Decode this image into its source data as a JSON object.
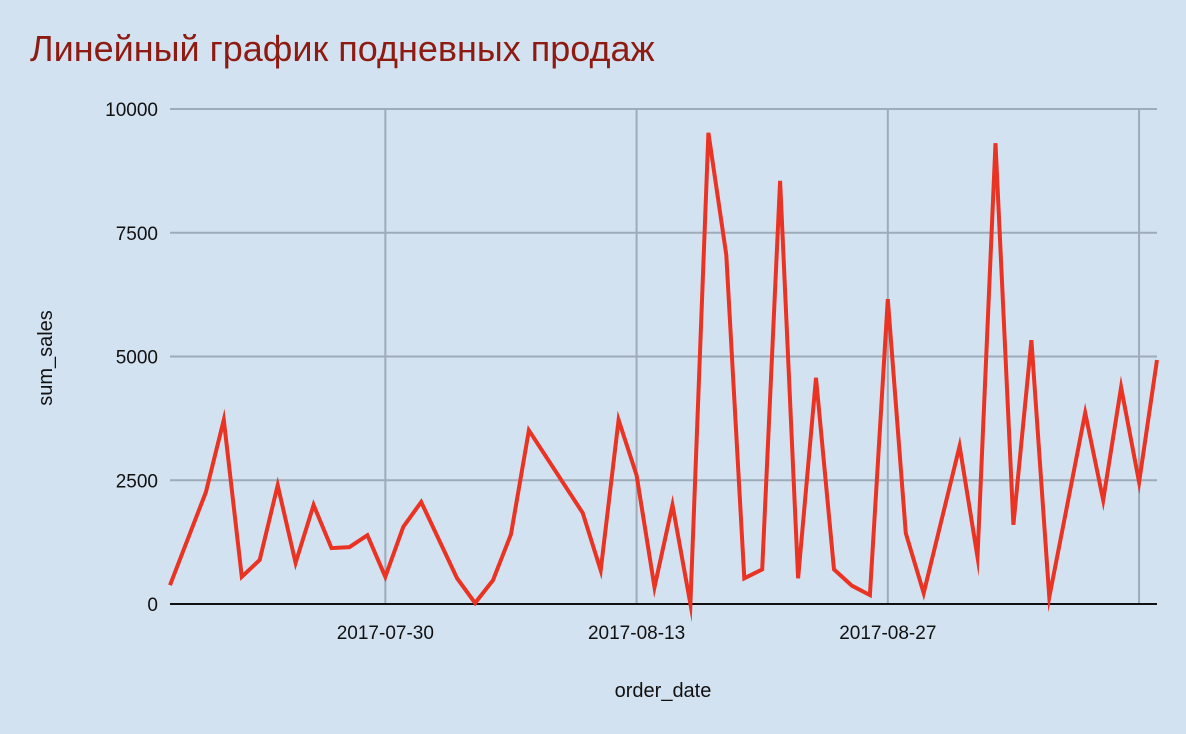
{
  "chart_data": {
    "type": "line",
    "title": "Линейный график подневных продаж",
    "xlabel": "order_date",
    "ylabel": "sum_sales",
    "ylim": [
      0,
      10000
    ],
    "xlim": [
      "2017-07-18",
      "2017-09-11"
    ],
    "yticks": [
      "0",
      "2500",
      "5000",
      "7500",
      "10000"
    ],
    "xticks": [
      "2017-07-30",
      "2017-08-13",
      "2017-08-27"
    ],
    "x_gridlines": [
      "2017-07-30",
      "2017-08-13",
      "2017-08-27",
      "2017-09-10"
    ],
    "grid": true,
    "line_color": "#ea3323",
    "title_color": "#8e1b12",
    "background": "#d3e2f1",
    "series": [
      {
        "x": [
          "2017-07-18",
          "2017-07-20",
          "2017-07-21",
          "2017-07-22",
          "2017-07-23",
          "2017-07-24",
          "2017-07-25",
          "2017-07-26",
          "2017-07-27",
          "2017-07-28",
          "2017-07-29",
          "2017-07-30",
          "2017-07-31",
          "2017-08-01",
          "2017-08-03",
          "2017-08-04",
          "2017-08-05",
          "2017-08-06",
          "2017-08-07",
          "2017-08-10",
          "2017-08-11",
          "2017-08-12",
          "2017-08-13",
          "2017-08-14",
          "2017-08-15",
          "2017-08-16",
          "2017-08-17",
          "2017-08-18",
          "2017-08-19",
          "2017-08-20",
          "2017-08-21",
          "2017-08-22",
          "2017-08-23",
          "2017-08-24",
          "2017-08-25",
          "2017-08-26",
          "2017-08-27",
          "2017-08-28",
          "2017-08-29",
          "2017-08-31",
          "2017-09-01",
          "2017-09-02",
          "2017-09-03",
          "2017-09-04",
          "2017-09-05",
          "2017-09-07",
          "2017-09-08",
          "2017-09-09",
          "2017-09-10",
          "2017-09-11"
        ],
        "values": [
          380,
          2260,
          3720,
          550,
          890,
          2400,
          830,
          2000,
          1130,
          1150,
          1390,
          550,
          1560,
          2060,
          520,
          20,
          480,
          1410,
          3510,
          1840,
          680,
          3720,
          2600,
          340,
          2000,
          0,
          9520,
          7050,
          520,
          700,
          8550,
          520,
          4570,
          700,
          370,
          180,
          6160,
          1430,
          220,
          3190,
          950,
          9310,
          1600,
          5330,
          140,
          3860,
          2100,
          4380,
          2460,
          4930
        ]
      }
    ]
  }
}
